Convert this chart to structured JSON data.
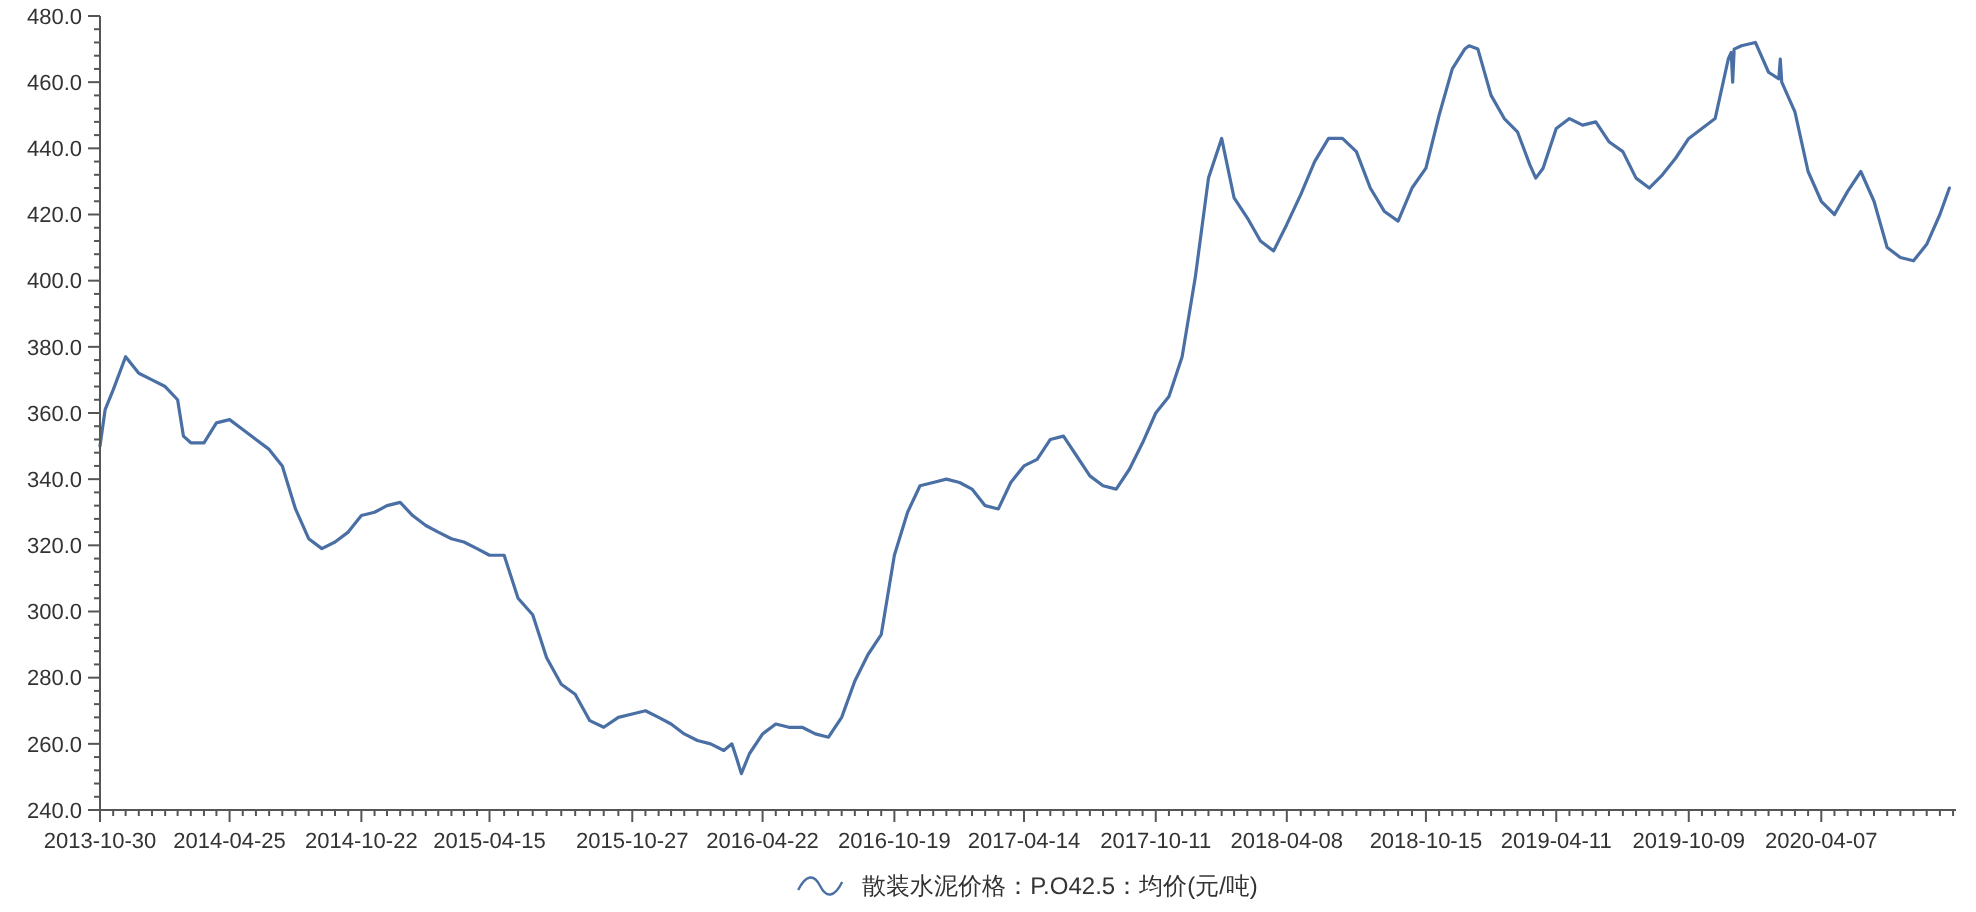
{
  "chart_data": {
    "type": "line",
    "x": [
      "2013-10-30",
      "2013-11-06",
      "2013-11-17",
      "2013-12-04",
      "2013-12-22",
      "2014-01-09",
      "2014-01-27",
      "2014-02-13",
      "2014-02-21",
      "2014-03-03",
      "2014-03-21",
      "2014-04-07",
      "2014-04-25",
      "2014-05-13",
      "2014-05-31",
      "2014-06-18",
      "2014-07-06",
      "2014-07-24",
      "2014-08-11",
      "2014-08-29",
      "2014-09-16",
      "2014-10-04",
      "2014-10-22",
      "2014-11-09",
      "2014-11-26",
      "2014-12-14",
      "2014-12-31",
      "2015-01-18",
      "2015-02-04",
      "2015-02-22",
      "2015-03-11",
      "2015-03-29",
      "2015-04-15",
      "2015-05-05",
      "2015-05-24",
      "2015-06-13",
      "2015-07-02",
      "2015-07-22",
      "2015-08-10",
      "2015-08-30",
      "2015-09-18",
      "2015-10-08",
      "2015-10-27",
      "2015-11-14",
      "2015-12-02",
      "2015-12-19",
      "2016-01-06",
      "2016-01-24",
      "2016-02-11",
      "2016-02-29",
      "2016-03-11",
      "2016-03-17",
      "2016-03-24",
      "2016-04-04",
      "2016-04-22",
      "2016-05-10",
      "2016-05-28",
      "2016-06-15",
      "2016-07-03",
      "2016-07-21",
      "2016-08-08",
      "2016-08-26",
      "2016-09-13",
      "2016-10-01",
      "2016-10-19",
      "2016-11-06",
      "2016-11-23",
      "2016-12-11",
      "2016-12-29",
      "2017-01-16",
      "2017-02-02",
      "2017-02-20",
      "2017-03-10",
      "2017-03-27",
      "2017-04-14",
      "2017-05-02",
      "2017-05-20",
      "2017-06-07",
      "2017-06-25",
      "2017-07-13",
      "2017-07-31",
      "2017-08-18",
      "2017-09-05",
      "2017-09-23",
      "2017-10-11",
      "2017-10-29",
      "2017-11-16",
      "2017-12-04",
      "2017-12-22",
      "2018-01-09",
      "2018-01-26",
      "2018-02-13",
      "2018-03-03",
      "2018-03-21",
      "2018-04-08",
      "2018-04-27",
      "2018-05-16",
      "2018-06-04",
      "2018-06-23",
      "2018-07-12",
      "2018-07-31",
      "2018-08-19",
      "2018-09-07",
      "2018-09-26",
      "2018-10-15",
      "2018-11-02",
      "2018-11-20",
      "2018-12-07",
      "2018-12-13",
      "2018-12-25",
      "2019-01-12",
      "2019-01-30",
      "2019-02-17",
      "2019-03-06",
      "2019-03-14",
      "2019-03-24",
      "2019-04-11",
      "2019-04-29",
      "2019-05-17",
      "2019-06-04",
      "2019-06-22",
      "2019-07-11",
      "2019-07-29",
      "2019-08-16",
      "2019-09-03",
      "2019-09-21",
      "2019-10-09",
      "2019-10-27",
      "2019-11-14",
      "2019-12-02",
      "2019-12-06",
      "2019-12-08",
      "2019-12-10",
      "2019-12-20",
      "2020-01-08",
      "2020-01-26",
      "2020-02-09",
      "2020-02-11",
      "2020-02-13",
      "2020-03-02",
      "2020-03-20",
      "2020-04-07",
      "2020-04-25",
      "2020-05-13",
      "2020-05-31",
      "2020-06-18",
      "2020-07-06",
      "2020-07-24",
      "2020-08-11",
      "2020-08-29",
      "2020-09-16",
      "2020-09-29"
    ],
    "series": [
      {
        "name": "散装水泥价格：P.O42.5：均价(元/吨)",
        "color": "#4a6fa5",
        "values": [
          350,
          361,
          367,
          377,
          372,
          370,
          368,
          364,
          353,
          351,
          351,
          357,
          358,
          355,
          352,
          349,
          344,
          331,
          322,
          319,
          321,
          324,
          329,
          330,
          332,
          333,
          329,
          326,
          324,
          322,
          321,
          319,
          317,
          317,
          304,
          299,
          286,
          278,
          275,
          267,
          265,
          268,
          269,
          270,
          268,
          266,
          263,
          261,
          260,
          258,
          260,
          256,
          251,
          257,
          263,
          266,
          265,
          265,
          263,
          262,
          268,
          279,
          287,
          293,
          317,
          330,
          338,
          339,
          340,
          339,
          337,
          332,
          331,
          339,
          344,
          346,
          352,
          353,
          347,
          341,
          338,
          337,
          343,
          351,
          360,
          365,
          377,
          401,
          431,
          443,
          425,
          419,
          412,
          409,
          417,
          426,
          436,
          443,
          443,
          439,
          428,
          421,
          418,
          428,
          434,
          450,
          464,
          470,
          471,
          470,
          456,
          449,
          445,
          435,
          431,
          434,
          446,
          449,
          447,
          448,
          442,
          439,
          431,
          428,
          432,
          437,
          443,
          446,
          449,
          467,
          469,
          460,
          470,
          471,
          472,
          463,
          461,
          467,
          460,
          451,
          433,
          424,
          420,
          427,
          433,
          424,
          410,
          407,
          406,
          411,
          420,
          428
        ]
      }
    ],
    "xlim": [
      "2013-10-30",
      "2020-10-08"
    ],
    "xticks": [
      "2013-10-30",
      {
        "value": "2013-11-17",
        "label": null
      },
      {
        "value": "2013-12-04",
        "label": null
      },
      {
        "value": "2013-12-22",
        "label": null
      },
      {
        "value": "2014-01-09",
        "label": null
      },
      {
        "value": "2014-01-27",
        "label": null
      },
      {
        "value": "2014-02-13",
        "label": null
      },
      {
        "value": "2014-03-03",
        "label": null
      },
      {
        "value": "2014-03-21",
        "label": null
      },
      {
        "value": "2014-04-07",
        "label": null
      },
      "2014-04-25",
      {
        "value": "2014-05-13",
        "label": null
      },
      {
        "value": "2014-05-31",
        "label": null
      },
      {
        "value": "2014-06-18",
        "label": null
      },
      {
        "value": "2014-07-06",
        "label": null
      },
      {
        "value": "2014-07-24",
        "label": null
      },
      {
        "value": "2014-08-11",
        "label": null
      },
      {
        "value": "2014-08-29",
        "label": null
      },
      {
        "value": "2014-09-16",
        "label": null
      },
      {
        "value": "2014-10-04",
        "label": null
      },
      "2014-10-22",
      {
        "value": "2014-11-09",
        "label": null
      },
      {
        "value": "2014-11-26",
        "label": null
      },
      {
        "value": "2014-12-14",
        "label": null
      },
      {
        "value": "2014-12-31",
        "label": null
      },
      {
        "value": "2015-01-18",
        "label": null
      },
      {
        "value": "2015-02-04",
        "label": null
      },
      {
        "value": "2015-02-22",
        "label": null
      },
      {
        "value": "2015-03-11",
        "label": null
      },
      {
        "value": "2015-03-29",
        "label": null
      },
      "2015-04-15",
      {
        "value": "2015-05-05",
        "label": null
      },
      {
        "value": "2015-05-24",
        "label": null
      },
      {
        "value": "2015-06-13",
        "label": null
      },
      {
        "value": "2015-07-02",
        "label": null
      },
      {
        "value": "2015-07-22",
        "label": null
      },
      {
        "value": "2015-08-10",
        "label": null
      },
      {
        "value": "2015-08-30",
        "label": null
      },
      {
        "value": "2015-09-18",
        "label": null
      },
      {
        "value": "2015-10-08",
        "label": null
      },
      "2015-10-27",
      {
        "value": "2015-11-14",
        "label": null
      },
      {
        "value": "2015-12-02",
        "label": null
      },
      {
        "value": "2015-12-19",
        "label": null
      },
      {
        "value": "2016-01-06",
        "label": null
      },
      {
        "value": "2016-01-24",
        "label": null
      },
      {
        "value": "2016-02-11",
        "label": null
      },
      {
        "value": "2016-02-29",
        "label": null
      },
      {
        "value": "2016-03-17",
        "label": null
      },
      {
        "value": "2016-04-04",
        "label": null
      },
      "2016-04-22",
      {
        "value": "2016-05-10",
        "label": null
      },
      {
        "value": "2016-05-28",
        "label": null
      },
      {
        "value": "2016-06-15",
        "label": null
      },
      {
        "value": "2016-07-03",
        "label": null
      },
      {
        "value": "2016-07-21",
        "label": null
      },
      {
        "value": "2016-08-08",
        "label": null
      },
      {
        "value": "2016-08-26",
        "label": null
      },
      {
        "value": "2016-09-13",
        "label": null
      },
      {
        "value": "2016-10-01",
        "label": null
      },
      "2016-10-19",
      {
        "value": "2016-11-06",
        "label": null
      },
      {
        "value": "2016-11-23",
        "label": null
      },
      {
        "value": "2016-12-11",
        "label": null
      },
      {
        "value": "2016-12-29",
        "label": null
      },
      {
        "value": "2017-01-16",
        "label": null
      },
      {
        "value": "2017-02-02",
        "label": null
      },
      {
        "value": "2017-02-20",
        "label": null
      },
      {
        "value": "2017-03-10",
        "label": null
      },
      {
        "value": "2017-03-27",
        "label": null
      },
      "2017-04-14",
      {
        "value": "2017-05-02",
        "label": null
      },
      {
        "value": "2017-05-20",
        "label": null
      },
      {
        "value": "2017-06-07",
        "label": null
      },
      {
        "value": "2017-06-25",
        "label": null
      },
      {
        "value": "2017-07-13",
        "label": null
      },
      {
        "value": "2017-07-31",
        "label": null
      },
      {
        "value": "2017-08-18",
        "label": null
      },
      {
        "value": "2017-09-05",
        "label": null
      },
      {
        "value": "2017-09-23",
        "label": null
      },
      "2017-10-11",
      {
        "value": "2017-10-29",
        "label": null
      },
      {
        "value": "2017-11-16",
        "label": null
      },
      {
        "value": "2017-12-04",
        "label": null
      },
      {
        "value": "2017-12-22",
        "label": null
      },
      {
        "value": "2018-01-09",
        "label": null
      },
      {
        "value": "2018-01-26",
        "label": null
      },
      {
        "value": "2018-02-13",
        "label": null
      },
      {
        "value": "2018-03-03",
        "label": null
      },
      {
        "value": "2018-03-21",
        "label": null
      },
      "2018-04-08",
      {
        "value": "2018-04-27",
        "label": null
      },
      {
        "value": "2018-05-16",
        "label": null
      },
      {
        "value": "2018-06-04",
        "label": null
      },
      {
        "value": "2018-06-23",
        "label": null
      },
      {
        "value": "2018-07-12",
        "label": null
      },
      {
        "value": "2018-07-31",
        "label": null
      },
      {
        "value": "2018-08-19",
        "label": null
      },
      {
        "value": "2018-09-07",
        "label": null
      },
      {
        "value": "2018-09-26",
        "label": null
      },
      "2018-10-15",
      {
        "value": "2018-11-02",
        "label": null
      },
      {
        "value": "2018-11-20",
        "label": null
      },
      {
        "value": "2018-12-07",
        "label": null
      },
      {
        "value": "2018-12-25",
        "label": null
      },
      {
        "value": "2019-01-12",
        "label": null
      },
      {
        "value": "2019-01-30",
        "label": null
      },
      {
        "value": "2019-02-17",
        "label": null
      },
      {
        "value": "2019-03-06",
        "label": null
      },
      {
        "value": "2019-03-24",
        "label": null
      },
      "2019-04-11",
      {
        "value": "2019-04-29",
        "label": null
      },
      {
        "value": "2019-05-17",
        "label": null
      },
      {
        "value": "2019-06-04",
        "label": null
      },
      {
        "value": "2019-06-22",
        "label": null
      },
      {
        "value": "2019-07-11",
        "label": null
      },
      {
        "value": "2019-07-29",
        "label": null
      },
      {
        "value": "2019-08-16",
        "label": null
      },
      {
        "value": "2019-09-03",
        "label": null
      },
      {
        "value": "2019-09-21",
        "label": null
      },
      "2019-10-09",
      {
        "value": "2019-10-27",
        "label": null
      },
      {
        "value": "2019-11-14",
        "label": null
      },
      {
        "value": "2019-12-02",
        "label": null
      },
      {
        "value": "2019-12-20",
        "label": null
      },
      {
        "value": "2020-01-08",
        "label": null
      },
      {
        "value": "2020-01-26",
        "label": null
      },
      {
        "value": "2020-02-13",
        "label": null
      },
      {
        "value": "2020-03-02",
        "label": null
      },
      {
        "value": "2020-03-20",
        "label": null
      },
      "2020-04-07",
      {
        "value": "2020-04-25",
        "label": null
      },
      {
        "value": "2020-05-13",
        "label": null
      },
      {
        "value": "2020-05-31",
        "label": null
      },
      {
        "value": "2020-06-18",
        "label": null
      },
      {
        "value": "2020-07-06",
        "label": null
      },
      {
        "value": "2020-07-24",
        "label": null
      },
      {
        "value": "2020-08-11",
        "label": null
      },
      {
        "value": "2020-08-29",
        "label": null
      },
      {
        "value": "2020-09-16",
        "label": null
      },
      {
        "value": "2020-10-04",
        "label": null
      }
    ],
    "ylim": [
      240,
      480
    ],
    "yticks": [
      {
        "value": 240,
        "label": "240.0"
      },
      {
        "value": 244,
        "label": null
      },
      {
        "value": 248,
        "label": null
      },
      {
        "value": 252,
        "label": null
      },
      {
        "value": 256,
        "label": null
      },
      {
        "value": 260,
        "label": "260.0"
      },
      {
        "value": 264,
        "label": null
      },
      {
        "value": 268,
        "label": null
      },
      {
        "value": 272,
        "label": null
      },
      {
        "value": 276,
        "label": null
      },
      {
        "value": 280,
        "label": "280.0"
      },
      {
        "value": 284,
        "label": null
      },
      {
        "value": 288,
        "label": null
      },
      {
        "value": 292,
        "label": null
      },
      {
        "value": 296,
        "label": null
      },
      {
        "value": 300,
        "label": "300.0"
      },
      {
        "value": 304,
        "label": null
      },
      {
        "value": 308,
        "label": null
      },
      {
        "value": 312,
        "label": null
      },
      {
        "value": 316,
        "label": null
      },
      {
        "value": 320,
        "label": "320.0"
      },
      {
        "value": 324,
        "label": null
      },
      {
        "value": 328,
        "label": null
      },
      {
        "value": 332,
        "label": null
      },
      {
        "value": 336,
        "label": null
      },
      {
        "value": 340,
        "label": "340.0"
      },
      {
        "value": 344,
        "label": null
      },
      {
        "value": 348,
        "label": null
      },
      {
        "value": 352,
        "label": null
      },
      {
        "value": 356,
        "label": null
      },
      {
        "value": 360,
        "label": "360.0"
      },
      {
        "value": 364,
        "label": null
      },
      {
        "value": 368,
        "label": null
      },
      {
        "value": 372,
        "label": null
      },
      {
        "value": 376,
        "label": null
      },
      {
        "value": 380,
        "label": "380.0"
      },
      {
        "value": 384,
        "label": null
      },
      {
        "value": 388,
        "label": null
      },
      {
        "value": 392,
        "label": null
      },
      {
        "value": 396,
        "label": null
      },
      {
        "value": 400,
        "label": "400.0"
      },
      {
        "value": 404,
        "label": null
      },
      {
        "value": 408,
        "label": null
      },
      {
        "value": 412,
        "label": null
      },
      {
        "value": 416,
        "label": null
      },
      {
        "value": 420,
        "label": "420.0"
      },
      {
        "value": 424,
        "label": null
      },
      {
        "value": 428,
        "label": null
      },
      {
        "value": 432,
        "label": null
      },
      {
        "value": 436,
        "label": null
      },
      {
        "value": 440,
        "label": "440.0"
      },
      {
        "value": 444,
        "label": null
      },
      {
        "value": 448,
        "label": null
      },
      {
        "value": 452,
        "label": null
      },
      {
        "value": 456,
        "label": null
      },
      {
        "value": 460,
        "label": "460.0"
      },
      {
        "value": 464,
        "label": null
      },
      {
        "value": 468,
        "label": null
      },
      {
        "value": 472,
        "label": null
      },
      {
        "value": 476,
        "label": null
      },
      {
        "value": 480,
        "label": "480.0"
      }
    ],
    "legend": "bottom"
  }
}
